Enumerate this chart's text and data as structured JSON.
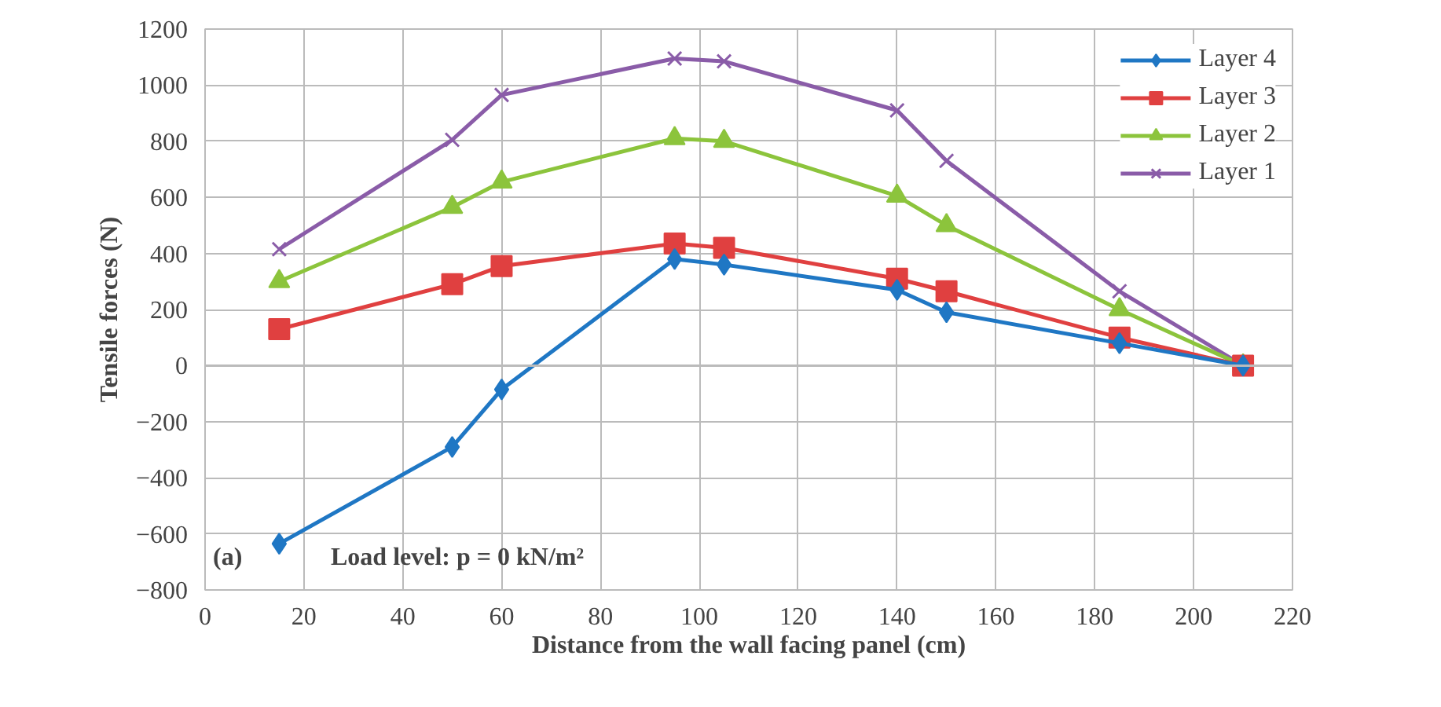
{
  "chart_data": {
    "type": "line",
    "xlabel": "Distance from the wall facing panel (cm)",
    "ylabel": "Tensile forces (N)",
    "x": [
      15,
      50,
      60,
      95,
      105,
      140,
      150,
      185,
      210
    ],
    "series": [
      {
        "name": "Layer 4",
        "color": "#1f77c4",
        "marker": "diamond",
        "values": [
          -635,
          -290,
          -85,
          380,
          360,
          270,
          190,
          80,
          0
        ]
      },
      {
        "name": "Layer 3",
        "color": "#e04040",
        "marker": "square",
        "values": [
          130,
          290,
          355,
          435,
          420,
          310,
          265,
          100,
          0
        ]
      },
      {
        "name": "Layer 2",
        "color": "#8cc43c",
        "marker": "triangle",
        "values": [
          300,
          565,
          655,
          810,
          800,
          605,
          500,
          200,
          0
        ]
      },
      {
        "name": "Layer 1",
        "color": "#8a5ca8",
        "marker": "cross",
        "values": [
          415,
          805,
          965,
          1095,
          1085,
          910,
          730,
          265,
          0
        ]
      }
    ],
    "xlim": [
      0,
      220
    ],
    "ylim": [
      -800,
      1200
    ],
    "xticks": [
      0,
      20,
      40,
      60,
      80,
      100,
      120,
      140,
      160,
      180,
      200,
      220
    ],
    "yticks": [
      -800,
      -600,
      -400,
      -200,
      0,
      200,
      400,
      600,
      800,
      1000,
      1200
    ],
    "grid": true,
    "legend": "top right",
    "line_style": "solid",
    "annotations": [
      "Load level: p = 0 kN/m²",
      "(a)"
    ]
  }
}
